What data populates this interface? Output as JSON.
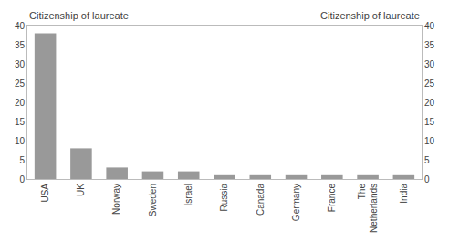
{
  "chart_data": {
    "type": "bar",
    "ylabel": "Citizenship of laureate",
    "y2label": "Citizenship of laureate",
    "categories": [
      "USA",
      "UK",
      "Norway",
      "Sweden",
      "Israel",
      "Russia",
      "Canada",
      "Germany",
      "France",
      "The\nNetherlands",
      "India"
    ],
    "values": [
      38,
      8,
      3,
      2,
      2,
      1,
      1,
      1,
      1,
      1,
      1
    ],
    "color": "#999999",
    "ylim": [
      0,
      40
    ],
    "yticks": [
      0,
      5,
      10,
      15,
      20,
      25,
      30,
      35,
      40
    ],
    "y2lim": [
      0,
      40
    ],
    "y2ticks": [
      0,
      5,
      10,
      15,
      20,
      25,
      30,
      35,
      40
    ],
    "grid": false
  }
}
